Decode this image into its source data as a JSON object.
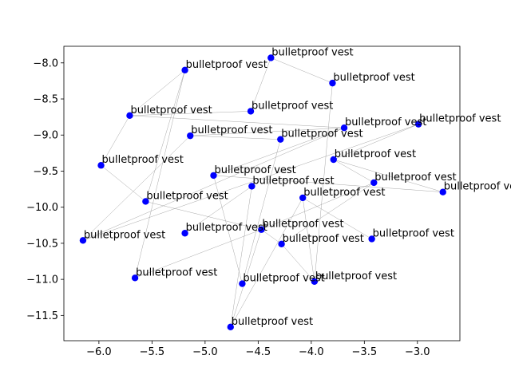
{
  "chart_data": {
    "type": "scatter",
    "title": "",
    "xlabel": "",
    "ylabel": "",
    "xlim": [
      -6.33,
      -2.6
    ],
    "ylim": [
      -11.85,
      -7.77
    ],
    "xticks": [
      -6.0,
      -5.5,
      -5.0,
      -4.5,
      -4.0,
      -3.5,
      -3.0
    ],
    "xtick_labels": [
      "−6.0",
      "−5.5",
      "−5.0",
      "−4.5",
      "−4.0",
      "−3.5",
      "−3.0"
    ],
    "yticks": [
      -8.0,
      -8.5,
      -9.0,
      -9.5,
      -10.0,
      -10.5,
      -11.0,
      -11.5
    ],
    "ytick_labels": [
      "−8.0",
      "−8.5",
      "−9.0",
      "−9.5",
      "−10.0",
      "−10.5",
      "−11.0",
      "−11.5"
    ],
    "marker_color": "#0000ff",
    "edge_color": "#8a8a8a",
    "grid": false,
    "points": [
      {
        "x": -4.38,
        "y": -7.93,
        "label": "bulletproof vest"
      },
      {
        "x": -5.19,
        "y": -8.1,
        "label": "bulletproof vest"
      },
      {
        "x": -3.8,
        "y": -8.28,
        "label": "bulletproof vest"
      },
      {
        "x": -4.57,
        "y": -8.67,
        "label": "bulletproof vest"
      },
      {
        "x": -5.71,
        "y": -8.73,
        "label": "bulletproof vest"
      },
      {
        "x": -2.99,
        "y": -8.85,
        "label": "bulletproof vest"
      },
      {
        "x": -3.69,
        "y": -8.9,
        "label": "bulletproof vest"
      },
      {
        "x": -5.14,
        "y": -9.01,
        "label": "bulletproof vest"
      },
      {
        "x": -4.29,
        "y": -9.06,
        "label": "bulletproof vest"
      },
      {
        "x": -3.79,
        "y": -9.34,
        "label": "bulletproof vest"
      },
      {
        "x": -5.98,
        "y": -9.42,
        "label": "bulletproof vest"
      },
      {
        "x": -4.92,
        "y": -9.56,
        "label": "bulletproof vest"
      },
      {
        "x": -3.41,
        "y": -9.66,
        "label": "bulletproof vest"
      },
      {
        "x": -4.56,
        "y": -9.71,
        "label": "bulletproof vest"
      },
      {
        "x": -2.76,
        "y": -9.79,
        "label": "bulletproof vest"
      },
      {
        "x": -4.08,
        "y": -9.87,
        "label": "bulletproof vest"
      },
      {
        "x": -5.56,
        "y": -9.92,
        "label": "bulletproof vest"
      },
      {
        "x": -4.47,
        "y": -10.31,
        "label": "bulletproof vest"
      },
      {
        "x": -5.19,
        "y": -10.36,
        "label": "bulletproof vest"
      },
      {
        "x": -3.43,
        "y": -10.44,
        "label": "bulletproof vest"
      },
      {
        "x": -6.15,
        "y": -10.46,
        "label": "bulletproof vest"
      },
      {
        "x": -4.28,
        "y": -10.51,
        "label": "bulletproof vest"
      },
      {
        "x": -5.66,
        "y": -10.98,
        "label": "bulletproof vest"
      },
      {
        "x": -3.97,
        "y": -11.03,
        "label": "bulletproof vest"
      },
      {
        "x": -4.65,
        "y": -11.06,
        "label": "bulletproof vest"
      },
      {
        "x": -4.76,
        "y": -11.66,
        "label": "bulletproof vest"
      }
    ],
    "edges": [
      [
        1,
        4
      ],
      [
        1,
        22
      ],
      [
        1,
        16
      ],
      [
        0,
        2
      ],
      [
        0,
        3
      ],
      [
        3,
        4
      ],
      [
        4,
        6
      ],
      [
        4,
        10
      ],
      [
        2,
        23
      ],
      [
        5,
        20
      ],
      [
        5,
        9
      ],
      [
        6,
        11
      ],
      [
        6,
        7
      ],
      [
        7,
        20
      ],
      [
        7,
        8
      ],
      [
        8,
        24
      ],
      [
        9,
        12
      ],
      [
        9,
        14
      ],
      [
        10,
        16
      ],
      [
        11,
        14
      ],
      [
        11,
        24
      ],
      [
        12,
        17
      ],
      [
        12,
        21
      ],
      [
        13,
        25
      ],
      [
        13,
        18
      ],
      [
        15,
        19
      ],
      [
        15,
        23
      ],
      [
        15,
        25
      ],
      [
        16,
        17
      ],
      [
        17,
        21
      ],
      [
        17,
        22
      ],
      [
        17,
        25
      ],
      [
        21,
        23
      ],
      [
        20,
        6
      ]
    ]
  }
}
